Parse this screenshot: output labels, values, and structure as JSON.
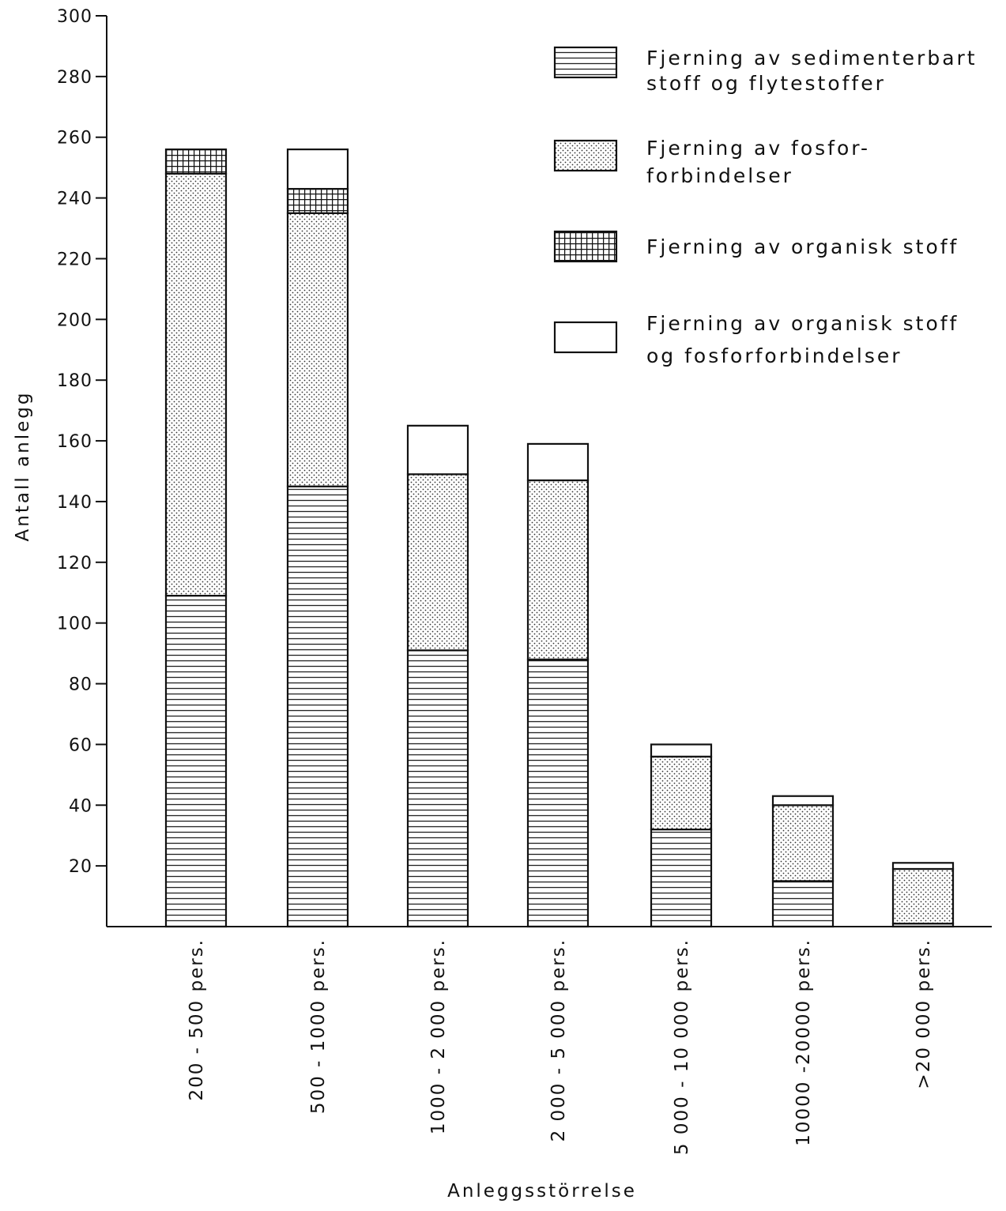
{
  "chart_data": {
    "type": "bar",
    "stacked": true,
    "title": "",
    "xlabel": "Anleggsstörrelse",
    "ylabel": "Antall anlegg",
    "ylim": [
      0,
      300
    ],
    "y_ticks": [
      20,
      40,
      60,
      80,
      100,
      120,
      140,
      160,
      180,
      200,
      220,
      240,
      260,
      280,
      300
    ],
    "grid": false,
    "legend_position": "top-right",
    "categories": [
      "200 - 500 pers.",
      "500 - 1000 pers.",
      "1000 - 2 000 pers.",
      "2 000 - 5 000 pers.",
      "5 000 - 10 000 pers.",
      "10000 -20000 pers.",
      ">20 000 pers."
    ],
    "series": [
      {
        "name_lines": [
          "Fjerning av sedimenterbart",
          "stoff og flytestoffer"
        ],
        "pattern": "horizontal-lines",
        "values": [
          109,
          145,
          91,
          88,
          32,
          15,
          1
        ]
      },
      {
        "name_lines": [
          "Fjerning av fosfor-",
          "forbindelser"
        ],
        "pattern": "dots",
        "values": [
          139,
          90,
          58,
          59,
          24,
          25,
          18
        ]
      },
      {
        "name_lines": [
          "Fjerning av organisk stoff"
        ],
        "pattern": "grid",
        "values": [
          8,
          8,
          0,
          0,
          0,
          0,
          0
        ]
      },
      {
        "name_lines": [
          "Fjerning av organisk stoff",
          "og fosforforbindelser"
        ],
        "pattern": "blank",
        "values": [
          0,
          13,
          16,
          12,
          4,
          3,
          2
        ]
      }
    ]
  },
  "colors": {
    "ink": "#111111",
    "background": "#ffffff"
  }
}
